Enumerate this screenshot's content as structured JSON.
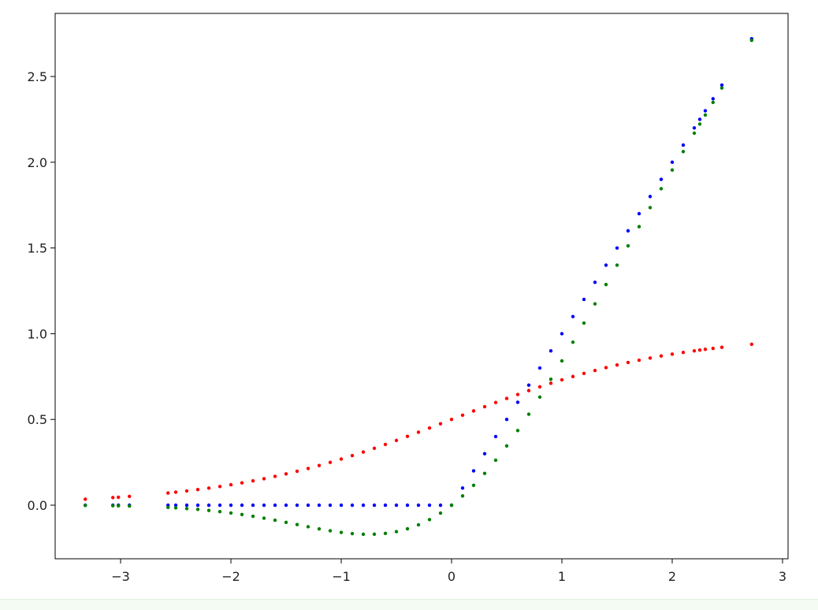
{
  "chart_data": {
    "type": "scatter",
    "x": [
      -3.32,
      -3.07,
      -3.02,
      -2.92,
      -2.57,
      -2.5,
      -2.4,
      -2.3,
      -2.2,
      -2.1,
      -2.0,
      -1.9,
      -1.8,
      -1.7,
      -1.6,
      -1.5,
      -1.4,
      -1.3,
      -1.2,
      -1.1,
      -1.0,
      -0.9,
      -0.8,
      -0.7,
      -0.6,
      -0.5,
      -0.4,
      -0.3,
      -0.2,
      -0.1,
      0.0,
      0.1,
      0.2,
      0.3,
      0.4,
      0.5,
      0.6,
      0.7,
      0.8,
      0.9,
      1.0,
      1.1,
      1.2,
      1.3,
      1.4,
      1.5,
      1.6,
      1.7,
      1.8,
      1.9,
      2.0,
      2.1,
      2.2,
      2.25,
      2.3,
      2.37,
      2.45,
      2.72
    ],
    "series": [
      {
        "color": "#ff0000",
        "values": [
          0.0349,
          0.0444,
          0.0465,
          0.0512,
          0.0711,
          0.0759,
          0.0832,
          0.0911,
          0.0998,
          0.1091,
          0.1192,
          0.1301,
          0.1419,
          0.1545,
          0.168,
          0.1824,
          0.1978,
          0.2142,
          0.2315,
          0.2497,
          0.2689,
          0.2891,
          0.31,
          0.3318,
          0.3543,
          0.3775,
          0.4013,
          0.4256,
          0.4502,
          0.475,
          0.5,
          0.525,
          0.5498,
          0.5744,
          0.5987,
          0.6225,
          0.6457,
          0.6682,
          0.69,
          0.7109,
          0.7311,
          0.7503,
          0.7685,
          0.7858,
          0.8022,
          0.8176,
          0.832,
          0.8455,
          0.8581,
          0.8699,
          0.8808,
          0.8909,
          0.9002,
          0.9047,
          0.9089,
          0.9145,
          0.9206,
          0.9382
        ]
      },
      {
        "color": "#0000ff",
        "values": [
          0,
          0,
          0,
          0,
          0,
          0,
          0,
          0,
          0,
          0,
          0,
          0,
          0,
          0,
          0,
          0,
          0,
          0,
          0,
          0,
          0,
          0,
          0,
          0,
          0,
          0,
          0,
          0,
          0,
          0,
          0,
          0.1,
          0.2,
          0.3,
          0.4,
          0.5,
          0.6,
          0.7,
          0.8,
          0.9,
          1.0,
          1.1,
          1.2,
          1.3,
          1.4,
          1.5,
          1.6,
          1.7,
          1.8,
          1.9,
          2.0,
          2.1,
          2.2,
          2.25,
          2.3,
          2.37,
          2.45,
          2.72
        ]
      },
      {
        "color": "#008000",
        "values": [
          -0.0015,
          -0.0033,
          -0.0038,
          -0.0051,
          -0.0131,
          -0.0155,
          -0.0197,
          -0.0246,
          -0.0306,
          -0.0376,
          -0.0455,
          -0.0545,
          -0.0646,
          -0.0758,
          -0.0877,
          -0.1002,
          -0.1131,
          -0.1258,
          -0.1381,
          -0.1493,
          -0.1587,
          -0.1657,
          -0.1695,
          -0.1694,
          -0.1646,
          -0.1543,
          -0.1378,
          -0.1146,
          -0.0841,
          -0.046,
          0,
          0.054,
          0.1159,
          0.1854,
          0.2622,
          0.3457,
          0.4354,
          0.5306,
          0.6305,
          0.7343,
          0.8413,
          0.9507,
          1.0619,
          1.1742,
          1.2869,
          1.3998,
          1.5123,
          1.6242,
          1.7354,
          1.8455,
          1.9545,
          2.0624,
          2.1694,
          2.2226,
          2.2754,
          2.3491,
          2.4326,
          2.7111
        ]
      }
    ],
    "xlim": [
      -3.593,
      3.05
    ],
    "ylim": [
      -0.3125,
      2.868
    ],
    "xticks": [
      {
        "value": -3,
        "label": "−3"
      },
      {
        "value": -2,
        "label": "−2"
      },
      {
        "value": -1,
        "label": "−1"
      },
      0,
      1,
      2,
      3
    ],
    "yticks": [
      {
        "value": 0,
        "label": "0.0"
      },
      {
        "value": 0.5,
        "label": "0.5"
      },
      {
        "value": 1,
        "label": "1.0"
      },
      {
        "value": 1.5,
        "label": "1.5"
      },
      {
        "value": 2,
        "label": "2.0"
      },
      {
        "value": 2.5,
        "label": "2.5"
      }
    ]
  }
}
